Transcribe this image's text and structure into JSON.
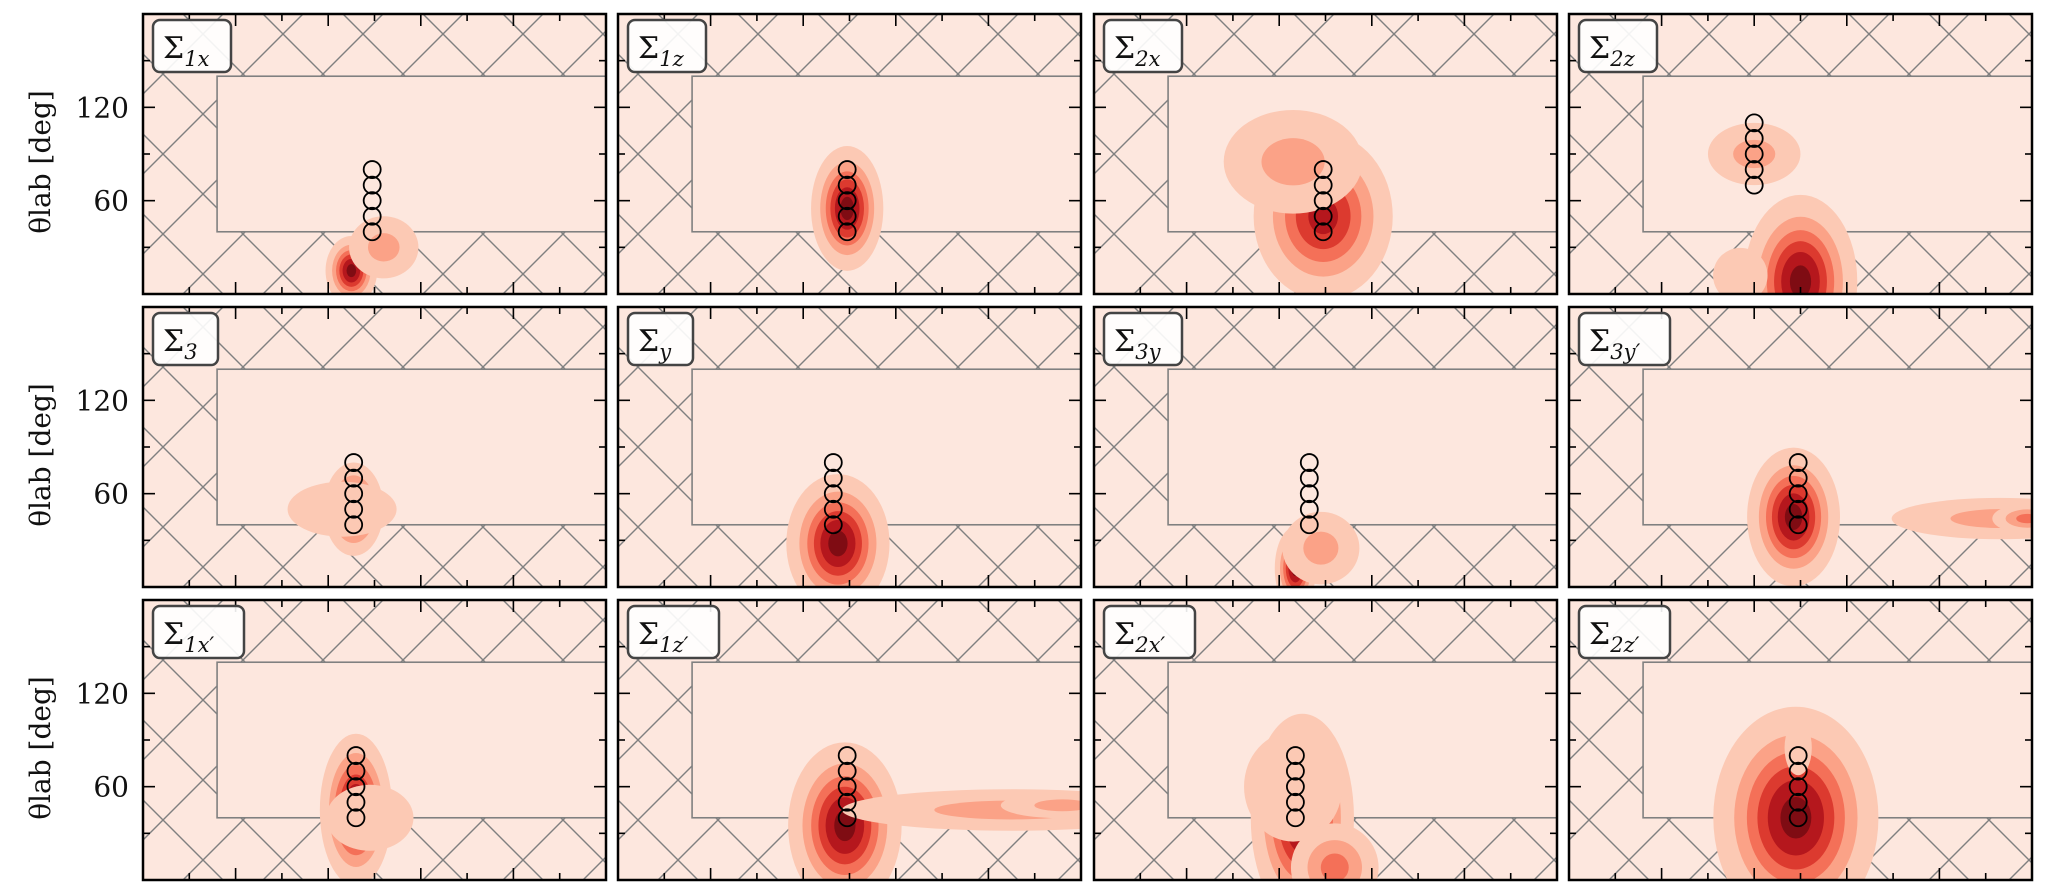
{
  "chart_data": {
    "type": "heatmap",
    "layout": {
      "rows": 3,
      "cols": 4
    },
    "ylabel": "θlab [deg]",
    "xlabel": "",
    "ylim": [
      0,
      180
    ],
    "xlim": [
      0,
      10
    ],
    "y_ticks": [
      60,
      120
    ],
    "y_tick_labels": [
      "60",
      "120"
    ],
    "grid": false,
    "colors": {
      "background": "#fde7de",
      "hatch": "#808080",
      "levels": [
        "#fcc9b4",
        "#fba287",
        "#f47058",
        "#dc3a2f",
        "#b5171d",
        "#7f0c13"
      ]
    },
    "region_box": {
      "x": [
        1.6,
        10
      ],
      "y": [
        40,
        140
      ]
    },
    "panels": [
      {
        "label": "Σ",
        "sub": "1x",
        "circles": {
          "x": 4.95,
          "y": [
            40,
            50,
            60,
            70,
            80
          ],
          "filled": false
        },
        "blobs": [
          {
            "x": 4.5,
            "y": 15,
            "sx": 0.25,
            "sy": 10,
            "peak": 6
          },
          {
            "x": 5.2,
            "y": 30,
            "sx": 0.45,
            "sy": 12,
            "peak": 2
          }
        ]
      },
      {
        "label": "Σ",
        "sub": "1z",
        "circles": {
          "x": 4.95,
          "y": [
            40,
            50,
            60,
            70,
            80
          ],
          "filled": true
        },
        "blobs": [
          {
            "x": 4.95,
            "y": 55,
            "sx": 0.35,
            "sy": 18,
            "peak": 6
          }
        ]
      },
      {
        "label": "Σ",
        "sub": "2x",
        "circles": {
          "x": 4.95,
          "y": [
            40,
            50,
            60,
            70,
            80
          ],
          "filled": true
        },
        "blobs": [
          {
            "x": 4.95,
            "y": 50,
            "sx": 0.7,
            "sy": 25,
            "peak": 5
          },
          {
            "x": 4.3,
            "y": 85,
            "sx": 0.9,
            "sy": 20,
            "peak": 2
          }
        ]
      },
      {
        "label": "Σ",
        "sub": "2z",
        "circles": {
          "x": 4.0,
          "y": [
            70,
            80,
            90,
            100,
            110
          ],
          "filled": false
        },
        "blobs": [
          {
            "x": 4.0,
            "y": 90,
            "sx": 0.6,
            "sy": 12,
            "peak": 2
          },
          {
            "x": 5.0,
            "y": 8,
            "sx": 0.55,
            "sy": 25,
            "peak": 6
          },
          {
            "x": 3.7,
            "y": 12,
            "sx": 0.5,
            "sy": 15,
            "peak": 1
          }
        ]
      },
      {
        "label": "Σ",
        "sub": "3",
        "circles": {
          "x": 4.55,
          "y": [
            40,
            50,
            60,
            70,
            80
          ],
          "filled": true
        },
        "blobs": [
          {
            "x": 4.55,
            "y": 50,
            "sx": 0.3,
            "sy": 14,
            "peak": 5
          },
          {
            "x": 4.3,
            "y": 50,
            "sx": 1.0,
            "sy": 15,
            "peak": 1
          }
        ]
      },
      {
        "label": "Σ",
        "sub": "y",
        "circles": {
          "x": 4.65,
          "y": [
            40,
            50,
            60,
            70,
            80
          ],
          "filled": true
        },
        "blobs": [
          {
            "x": 4.75,
            "y": 28,
            "sx": 0.5,
            "sy": 20,
            "peak": 6
          }
        ]
      },
      {
        "label": "Σ",
        "sub": "3y",
        "circles": {
          "x": 4.65,
          "y": [
            40,
            50,
            60,
            70,
            80
          ],
          "filled": false
        },
        "blobs": [
          {
            "x": 4.35,
            "y": 12,
            "sx": 0.2,
            "sy": 12,
            "peak": 6
          },
          {
            "x": 4.9,
            "y": 25,
            "sx": 0.5,
            "sy": 14,
            "peak": 2
          }
        ]
      },
      {
        "label": "Σ",
        "sub": "3y′",
        "circles": {
          "x": 4.95,
          "y": [
            40,
            50,
            60,
            70,
            80
          ],
          "filled": true
        },
        "blobs": [
          {
            "x": 4.85,
            "y": 45,
            "sx": 0.45,
            "sy": 20,
            "peak": 6
          },
          {
            "x": 9.3,
            "y": 44,
            "sx": 1.4,
            "sy": 8,
            "peak": 2
          },
          {
            "x": 9.9,
            "y": 44,
            "sx": 0.4,
            "sy": 5,
            "peak": 3
          }
        ]
      },
      {
        "label": "Σ",
        "sub": "1x′",
        "circles": {
          "x": 4.6,
          "y": [
            40,
            50,
            60,
            70,
            80
          ],
          "filled": true
        },
        "blobs": [
          {
            "x": 4.6,
            "y": 45,
            "sx": 0.35,
            "sy": 22,
            "peak": 6
          },
          {
            "x": 4.9,
            "y": 40,
            "sx": 0.8,
            "sy": 18,
            "peak": 1
          }
        ]
      },
      {
        "label": "Σ",
        "sub": "1z′",
        "circles": {
          "x": 4.95,
          "y": [
            40,
            50,
            60,
            70,
            80
          ],
          "filled": true
        },
        "blobs": [
          {
            "x": 4.9,
            "y": 35,
            "sx": 0.55,
            "sy": 24,
            "peak": 6
          },
          {
            "x": 8.5,
            "y": 45,
            "sx": 2.2,
            "sy": 8,
            "peak": 2
          },
          {
            "x": 9.6,
            "y": 48,
            "sx": 0.8,
            "sy": 5,
            "peak": 2
          }
        ]
      },
      {
        "label": "Σ",
        "sub": "2x′",
        "circles": {
          "x": 4.35,
          "y": [
            40,
            50,
            60,
            70,
            80
          ],
          "filled": true
        },
        "blobs": [
          {
            "x": 4.5,
            "y": 40,
            "sx": 0.5,
            "sy": 30,
            "peak": 6
          },
          {
            "x": 4.3,
            "y": 60,
            "sx": 0.9,
            "sy": 30,
            "peak": 1
          },
          {
            "x": 5.2,
            "y": 8,
            "sx": 0.5,
            "sy": 15,
            "peak": 3
          }
        ]
      },
      {
        "label": "Σ",
        "sub": "2z′",
        "circles": {
          "x": 4.95,
          "y": [
            40,
            50,
            60,
            70,
            80
          ],
          "filled": true
        },
        "blobs": [
          {
            "x": 4.9,
            "y": 40,
            "sx": 0.8,
            "sy": 32,
            "peak": 6
          },
          {
            "x": 4.95,
            "y": 85,
            "sx": 0.25,
            "sy": 15,
            "peak": 1
          }
        ]
      }
    ]
  }
}
